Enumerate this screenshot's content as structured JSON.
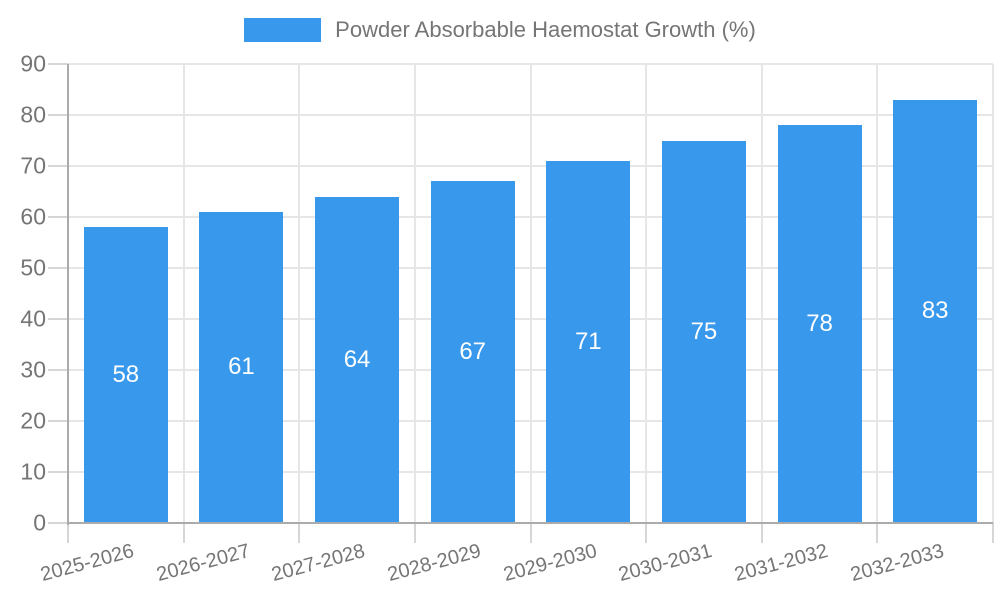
{
  "chart_data": {
    "type": "bar",
    "title": "Powder Absorbable Haemostat Growth (%)",
    "categories": [
      "2025-2026",
      "2026-2027",
      "2027-2028",
      "2028-2029",
      "2029-2030",
      "2030-2031",
      "2031-2032",
      "2032-2033"
    ],
    "values": [
      58,
      61,
      64,
      67,
      71,
      75,
      78,
      83
    ],
    "xlabel": "",
    "ylabel": "",
    "ylim": [
      0,
      90
    ],
    "y_ticks": [
      0,
      10,
      20,
      30,
      40,
      50,
      60,
      70,
      80,
      90
    ],
    "grid": true,
    "legend_position": "top-center",
    "bar_color": "#3898EC",
    "value_label_color": "#ffffff",
    "value_label_position": "inside-center",
    "x_label_rotation_deg": -15
  },
  "legend": {
    "label": "Powder Absorbable Haemostat Growth (%)"
  },
  "colors": {
    "background": "#ffffff",
    "bar": "#3898EC",
    "axis_text": "#757575",
    "legend_text": "#757575",
    "gridline": "#e6e6e6",
    "axis_line": "#ababab",
    "tick": "#d6d6d6",
    "value_label": "#ffffff"
  }
}
